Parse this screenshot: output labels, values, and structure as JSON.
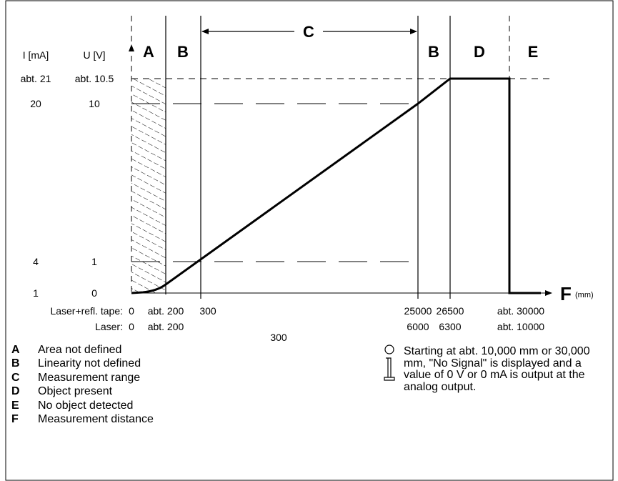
{
  "diagram": {
    "y_axis": {
      "current_label": "I [mA]",
      "voltage_label": "U [V]",
      "current_ticks": [
        "abt. 21",
        "20",
        "4",
        "1"
      ],
      "voltage_ticks": [
        "abt. 10.5",
        "10",
        "1",
        "0"
      ]
    },
    "x_axis": {
      "label": "F",
      "unit": "(mm)",
      "rows": [
        {
          "name": "Laser+refl. tape:",
          "values": [
            "0",
            "abt. 200",
            "300",
            "25000",
            "26500",
            "abt. 30000"
          ]
        },
        {
          "name": "Laser:",
          "values": [
            "0",
            "abt. 200",
            "300",
            "6000",
            "6300",
            "abt. 10000"
          ]
        }
      ]
    },
    "zones": [
      "A",
      "B",
      "C",
      "B",
      "D",
      "E"
    ]
  },
  "legend": [
    {
      "key": "A",
      "text": "Area not defined"
    },
    {
      "key": "B",
      "text": "Linearity not defined"
    },
    {
      "key": "C",
      "text": "Measurement range"
    },
    {
      "key": "D",
      "text": "Object present"
    },
    {
      "key": "E",
      "text": "No object detected"
    },
    {
      "key": "F",
      "text": "Measurement distance"
    }
  ],
  "note": {
    "icon": "info-icon",
    "text": "Starting at abt. 10,000 mm or 30,000 mm, \"No Signal\" is displayed and a value of 0 V or 0 mA is output at the analog output."
  },
  "colors": {
    "line": "#000000",
    "background": "#ffffff"
  }
}
